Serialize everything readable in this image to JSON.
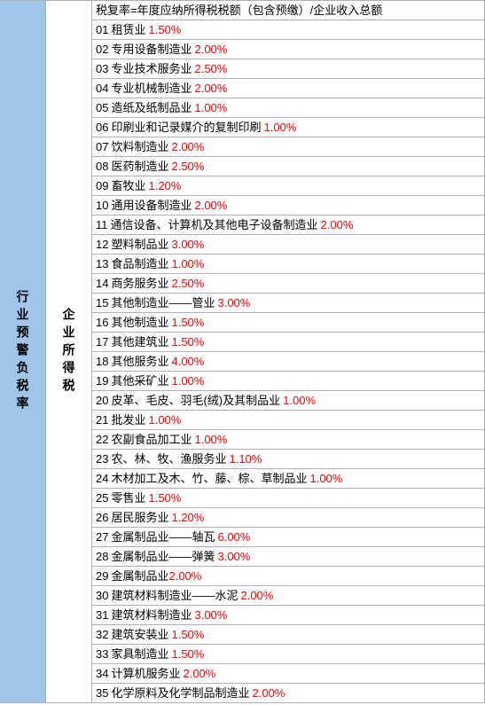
{
  "table": {
    "leftColumnLabel": "行业预警负税率",
    "midColumnLabel": "企业所得税",
    "headerFormula": "税复率=年度应纳所得税税额（包含预缴）/企业收入总额",
    "textColor": "#000000",
    "rateColor": "#ff0000",
    "leftBgColor": "#9fc5e8",
    "borderColor": "#b0b0b0",
    "fontSize": 13,
    "rows": [
      {
        "num": "01",
        "name": "租赁业",
        "rate": "1.50%"
      },
      {
        "num": "02",
        "name": "专用设备制造业",
        "rate": "2.00%"
      },
      {
        "num": "03",
        "name": "专业技术服务业",
        "rate": "2.50%"
      },
      {
        "num": "04",
        "name": "专业机械制造业",
        "rate": "2.00%"
      },
      {
        "num": "05",
        "name": "造纸及纸制品业",
        "rate": "1.00%"
      },
      {
        "num": "06",
        "name": "印刷业和记录媒介的复制印刷",
        "rate": "1.00%"
      },
      {
        "num": "07",
        "name": "饮料制造业",
        "rate": "2.00%"
      },
      {
        "num": "08",
        "name": "医药制造业",
        "rate": "2.50%"
      },
      {
        "num": "09",
        "name": "畜牧业",
        "rate": "1.20%"
      },
      {
        "num": "10",
        "name": "通用设备制造业",
        "rate": "2.00%"
      },
      {
        "num": "11",
        "name": "通信设备、计算机及其他电子设备制造业",
        "rate": "2.00%"
      },
      {
        "num": "12",
        "name": "塑料制品业",
        "rate": "3.00%"
      },
      {
        "num": "13",
        "name": "食品制造业",
        "rate": "1.00%"
      },
      {
        "num": "14",
        "name": "商务服务业",
        "rate": "2.50%"
      },
      {
        "num": "15",
        "name": "其他制造业——管业",
        "rate": "3.00%"
      },
      {
        "num": "16",
        "name": "其他制造业",
        "rate": "1.50%"
      },
      {
        "num": "17",
        "name": "其他建筑业",
        "rate": "1.50%"
      },
      {
        "num": "18",
        "name": "其他服务业",
        "rate": "4.00%"
      },
      {
        "num": "19",
        "name": "其他采矿业",
        "rate": "1.00%"
      },
      {
        "num": "20",
        "name": "皮革、毛皮、羽毛(绒)及其制品业",
        "rate": "1.00%"
      },
      {
        "num": "21",
        "name": "批发业",
        "rate": "1.00%"
      },
      {
        "num": "22",
        "name": "农副食品加工业",
        "rate": "1.00%"
      },
      {
        "num": "23",
        "name": "农、林、牧、渔服务业",
        "rate": "1.10%"
      },
      {
        "num": "24",
        "name": "木材加工及木、竹、藤、棕、草制品业",
        "rate": "1.00%"
      },
      {
        "num": "25",
        "name": "零售业",
        "rate": "1.50%"
      },
      {
        "num": "26",
        "name": "居民服务业",
        "rate": "1.20%"
      },
      {
        "num": "27",
        "name": "金属制品业——轴瓦",
        "rate": "6.00%"
      },
      {
        "num": "28",
        "name": "金属制品业——弹簧",
        "rate": "3.00%"
      },
      {
        "num": "29",
        "name": "金属制品业",
        "rate": "2.00%",
        "noSpace": true
      },
      {
        "num": "30",
        "name": "建筑材料制造业——水泥",
        "rate": "2.00%"
      },
      {
        "num": "31",
        "name": "建筑材料制造业",
        "rate": "3.00%"
      },
      {
        "num": "32",
        "name": "建筑安装业",
        "rate": "1.50%"
      },
      {
        "num": "33",
        "name": "家具制造业",
        "rate": "1.50%"
      },
      {
        "num": "34",
        "name": "计算机服务业",
        "rate": "2.00%"
      },
      {
        "num": "35",
        "name": "化学原料及化学制品制造业",
        "rate": "2.00%"
      }
    ]
  }
}
